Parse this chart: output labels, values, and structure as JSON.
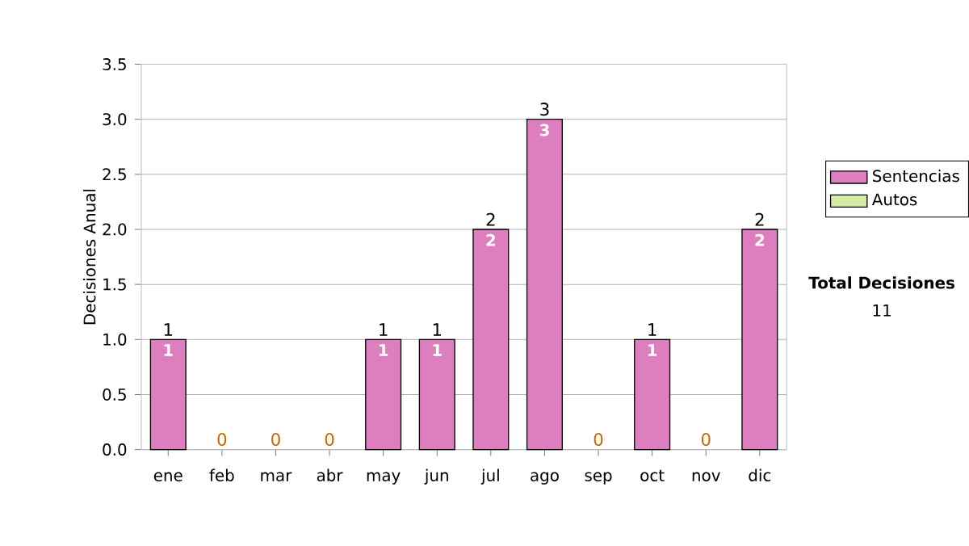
{
  "chart_data": {
    "type": "bar",
    "ylabel": "Decisiones Anual",
    "categories": [
      "ene",
      "feb",
      "mar",
      "abr",
      "may",
      "jun",
      "jul",
      "ago",
      "sep",
      "oct",
      "nov",
      "dic"
    ],
    "series": [
      {
        "name": "Sentencias",
        "color": "#dd7fbf",
        "values": [
          1,
          0,
          0,
          0,
          1,
          1,
          2,
          3,
          0,
          1,
          0,
          2
        ],
        "value_labels": [
          "1",
          null,
          null,
          null,
          "1",
          "1",
          "2",
          "3",
          null,
          "1",
          null,
          "2"
        ]
      },
      {
        "name": "Autos",
        "color": "#d4eca6",
        "values": [
          0,
          0,
          0,
          0,
          0,
          0,
          0,
          0,
          0,
          0,
          0,
          0
        ]
      }
    ],
    "stacked": true,
    "totals": [
      "1",
      "0",
      "0",
      "0",
      "1",
      "1",
      "2",
      "3",
      "0",
      "1",
      "0",
      "2"
    ],
    "ylim": [
      0,
      3.5
    ],
    "yticks": [
      {
        "value": 0,
        "label": "0.0"
      },
      {
        "value": 0.5,
        "label": "0.5"
      },
      {
        "value": 1,
        "label": "1.0"
      },
      {
        "value": 1.5,
        "label": "1.5"
      },
      {
        "value": 2,
        "label": "2.0"
      },
      {
        "value": 2.5,
        "label": "2.5"
      },
      {
        "value": 3,
        "label": "3.0"
      },
      {
        "value": 3.5,
        "label": "3.5"
      }
    ],
    "grid": "y",
    "legend": "right",
    "annotations": [
      "**Total Decisiones**",
      "11"
    ]
  }
}
